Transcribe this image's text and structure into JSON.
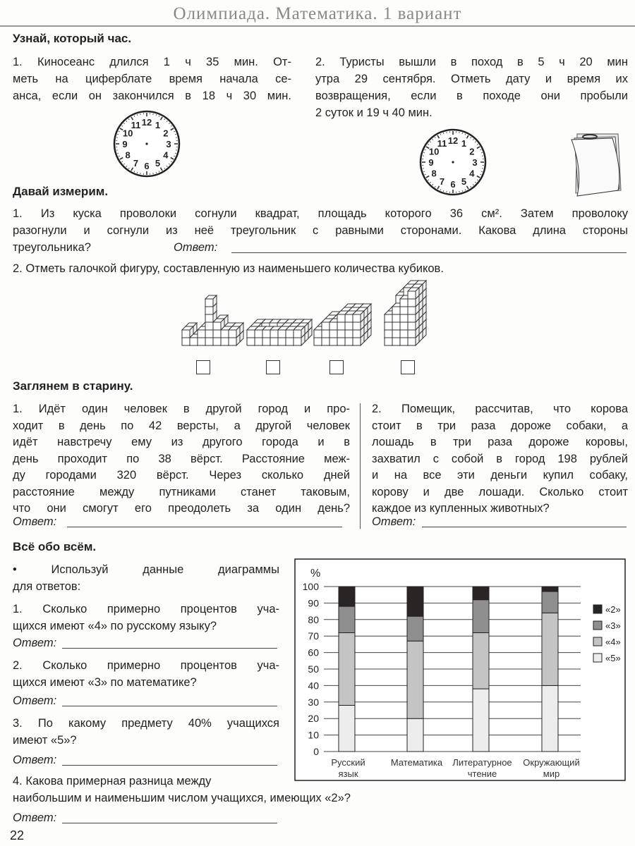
{
  "header": "Олимпиада. Математика. 1 вариант",
  "sections": [
    {
      "title": "Узнай, который час."
    },
    {
      "title": "Давай измерим."
    },
    {
      "title": "Заглянем в старину."
    },
    {
      "title": "Всё обо всём."
    }
  ],
  "s1": {
    "t1": [
      "1. Киносеанс длился 1 ч 35 мин. От-",
      "меть на циферблате время начала се-",
      "анса, если он закончился в 18 ч 30 мин."
    ],
    "t2": [
      "2. Туристы вышли в поход в 5 ч 20 мин",
      "утра 29 сентября. Отметь дату и время их",
      "возвращения, если в походе они пробыли",
      "2 суток и 19 ч 40 мин."
    ],
    "clock_numbers": [
      "12",
      "1",
      "2",
      "3",
      "4",
      "5",
      "6",
      "7",
      "8",
      "9",
      "10",
      "11"
    ]
  },
  "s2": {
    "t1": [
      "1. Из куска проволоки согнули квадрат, площадь которого 36 см². Затем проволоку",
      "разогнули и согнули из неё треугольник с равными сторонами. Какова длина стороны",
      "треугольника?"
    ],
    "t2": "2. Отметь галочкой фигуру, составленную из наименьшего количества кубиков."
  },
  "s3": {
    "t1": [
      "1. Идёт один человек в другой город и про-",
      "ходит в день по 42 версты, а другой человек",
      "идёт навстречу ему из другого города и в",
      "день проходит по 38 вёрст. Расстояние меж-",
      "ду городами 320 вёрст. Через сколько дней",
      "расстояние между путниками станет таковым,",
      "что они смогут его преодолеть за один день?"
    ],
    "t2": [
      "2. Помещик, рассчитав, что корова",
      "стоит в три раза дороже собаки, а",
      "лошадь в три раза дороже коровы,",
      "захватил с собой в город 198 рублей",
      "и на все эти деньги купил собаку,",
      "корову и две лошади. Сколько стоит",
      "каждое из купленных животных?"
    ]
  },
  "s4": {
    "intro": [
      "•     Используй данные диаграммы",
      "для ответов:"
    ],
    "q1": [
      "1. Сколько примерно процентов уча-",
      "щихся имеют «4» по русскому языку?"
    ],
    "q2": [
      "2. Сколько примерно процентов уча-",
      "щихся имеют «3» по математике?"
    ],
    "q3": [
      "3. По какому предмету 40% учащихся",
      "имеют «5»?"
    ],
    "q4": [
      "4. Какова примерная разница между",
      "наибольшим и наименьшим числом учащихся, имеющих «2»?"
    ]
  },
  "answer_label": "Ответ:",
  "page_number": "22",
  "chart_data": {
    "type": "bar",
    "stacked": true,
    "ylabel": "%",
    "ylim": [
      0,
      100
    ],
    "yticks": [
      0,
      10,
      20,
      30,
      40,
      50,
      60,
      70,
      80,
      90,
      100
    ],
    "grid": true,
    "legend": "right",
    "categories": [
      [
        "Русский",
        "язык"
      ],
      [
        "Математика",
        ""
      ],
      [
        "Литературное",
        "чтение"
      ],
      [
        "Окружающий",
        "мир"
      ]
    ],
    "series": [
      {
        "name": "«5»",
        "values": [
          28,
          20,
          38,
          40
        ],
        "color": "#ededed"
      },
      {
        "name": "«4»",
        "values": [
          44,
          47,
          34,
          44
        ],
        "color": "#c4c4c4"
      },
      {
        "name": "«3»",
        "values": [
          16,
          15,
          20,
          13
        ],
        "color": "#8f8f8f"
      },
      {
        "name": "«2»",
        "values": [
          12,
          18,
          8,
          3
        ],
        "color": "#2a2424"
      }
    ]
  }
}
